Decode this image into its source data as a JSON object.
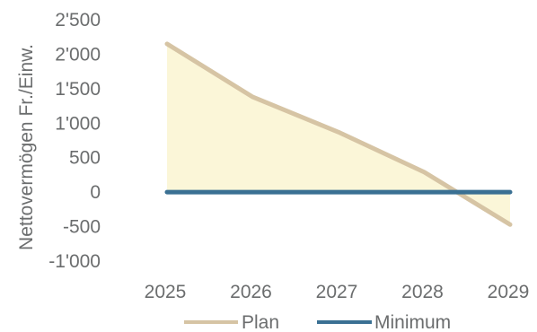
{
  "chart_data": {
    "type": "line",
    "ylabel": "Nettovermögen Fr./Einw.",
    "x": [
      "2025",
      "2026",
      "2027",
      "2028",
      "2029"
    ],
    "ylim": [
      -1000,
      2500
    ],
    "y_ticks": [
      2500,
      2000,
      1500,
      1000,
      500,
      0,
      -500,
      -1000
    ],
    "y_tick_labels": [
      "2'500",
      "2'000",
      "1'500",
      "1'000",
      "500",
      "0",
      "-500",
      "-1'000"
    ],
    "grid": false,
    "legend_position": "bottom",
    "series": [
      {
        "name": "Plan",
        "values": [
          2150,
          1380,
          870,
          290,
          -470
        ],
        "color": "#d6c4a4",
        "fill": "#fbf6d8"
      },
      {
        "name": "Minimum",
        "values": [
          0,
          0,
          0,
          0,
          0
        ],
        "color": "#3a7093"
      }
    ]
  },
  "legend": {
    "items": [
      {
        "label": "Plan",
        "color": "#d6c4a4"
      },
      {
        "label": "Minimum",
        "color": "#3a7093"
      }
    ]
  }
}
